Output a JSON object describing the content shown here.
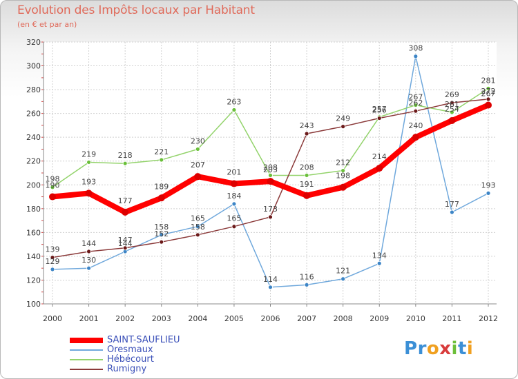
{
  "title": "Evolution des Impôts locaux par Habitant",
  "subtitle": "(en € et par an)",
  "logo_letters": [
    {
      "ch": "P",
      "color": "#3b8fd6"
    },
    {
      "ch": "r",
      "color": "#3b8fd6"
    },
    {
      "ch": "o",
      "color": "#f0a020"
    },
    {
      "ch": "x",
      "color": "#d83c3c"
    },
    {
      "ch": "i",
      "color": "#6cbf3a"
    },
    {
      "ch": "t",
      "color": "#3b8fd6"
    },
    {
      "ch": "i",
      "color": "#f0a020"
    }
  ],
  "chart_data": {
    "type": "line",
    "title": "Evolution des Impôts locaux par Habitant",
    "subtitle": "(en € et par an)",
    "x": [
      "2000",
      "2001",
      "2002",
      "2003",
      "2004",
      "2005",
      "2006",
      "2007",
      "2008",
      "2009",
      "2010",
      "2011",
      "2012"
    ],
    "ylim": [
      100,
      320
    ],
    "yticks": [
      100,
      120,
      140,
      160,
      180,
      200,
      220,
      240,
      260,
      280,
      300,
      320
    ],
    "grid": true,
    "legend_position": "bottom-left",
    "series": [
      {
        "name": "SAINT-SAUFLIEU",
        "color": "#ff0000",
        "point_color": "#dd0000",
        "width": 8,
        "radius": 5,
        "values": [
          190,
          193,
          177,
          189,
          207,
          201,
          203,
          191,
          198,
          214,
          240,
          254,
          267
        ],
        "labels": [
          "190",
          "193",
          "177",
          "189",
          "207",
          "201",
          "203",
          "191",
          "198",
          "214",
          "240",
          "254",
          "267"
        ]
      },
      {
        "name": "Oresmaux",
        "color": "#6fa8dc",
        "point_color": "#3d85c6",
        "width": 1.5,
        "radius": 3,
        "values": [
          129,
          130,
          144,
          158,
          165,
          184,
          114,
          116,
          121,
          134,
          308,
          177,
          193
        ],
        "labels": [
          "129",
          "130",
          "144",
          "158",
          "165",
          "184",
          "114",
          "116",
          "121",
          "134",
          "308",
          "177",
          "193"
        ]
      },
      {
        "name": "Hébécourt",
        "color": "#93d36b",
        "point_color": "#6abf3a",
        "width": 1.5,
        "radius": 3,
        "values": [
          198,
          219,
          218,
          221,
          230,
          263,
          208,
          208,
          212,
          257,
          267,
          261,
          281
        ],
        "labels": [
          "198",
          "219",
          "218",
          "221",
          "230",
          "263",
          "208",
          "208",
          "212",
          "257",
          "267",
          "261",
          "281"
        ]
      },
      {
        "name": "Rumigny",
        "color": "#8b3a3a",
        "point_color": "#6b1a1a",
        "width": 1.5,
        "radius": 3,
        "values": [
          139,
          144,
          147,
          152,
          158,
          165,
          173,
          243,
          249,
          256,
          262,
          269,
          272
        ],
        "labels": [
          "139",
          "144",
          "147",
          "152",
          "158",
          "165",
          "173",
          "243",
          "249",
          "256",
          "262",
          "269",
          "272"
        ]
      }
    ]
  }
}
